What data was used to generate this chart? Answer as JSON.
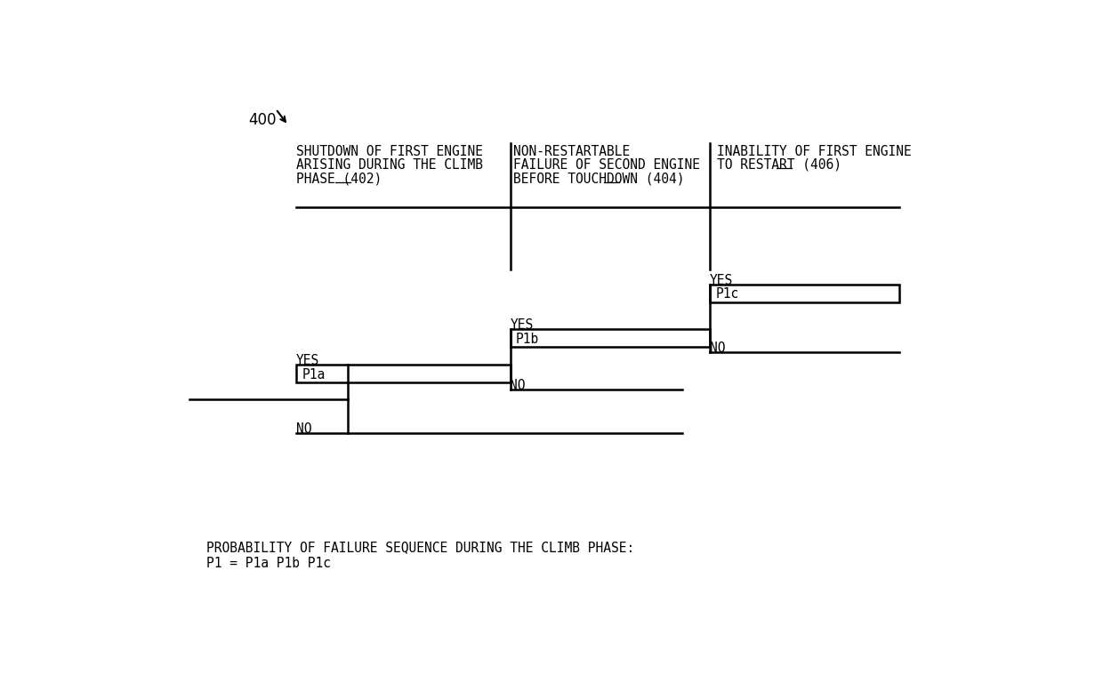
{
  "background_color": "#ffffff",
  "fig_width": 12.4,
  "fig_height": 7.77,
  "label_400": "400",
  "col1_header_lines": [
    "SHUTDOWN OF FIRST ENGINE",
    "ARISING DURING THE CLIMB",
    "PHASE (402)"
  ],
  "col2_header_lines": [
    "NON-RESTARTABLE",
    "FAILURE OF SECOND ENGINE",
    "BEFORE TOUCHDOWN (404)"
  ],
  "col3_header_lines": [
    "INABILITY OF FIRST ENGINE",
    "TO RESTART (406)"
  ],
  "node1_label": "P1a",
  "node2_label": "P1b",
  "node3_yes_label": "P1c",
  "yes_label": "YES",
  "no_label": "NO",
  "bottom_text_line1": "PROBABILITY OF FAILURE SEQUENCE DURING THE CLIMB PHASE:",
  "bottom_text_line2": "P1 = P1a P1b P1c",
  "font_size_header": 10.5,
  "font_size_node": 10.5,
  "font_size_yes_no": 10.5,
  "font_size_400": 12,
  "font_size_bottom": 10.5,
  "line_color": "#000000",
  "text_color": "#000000",
  "lw": 1.8
}
